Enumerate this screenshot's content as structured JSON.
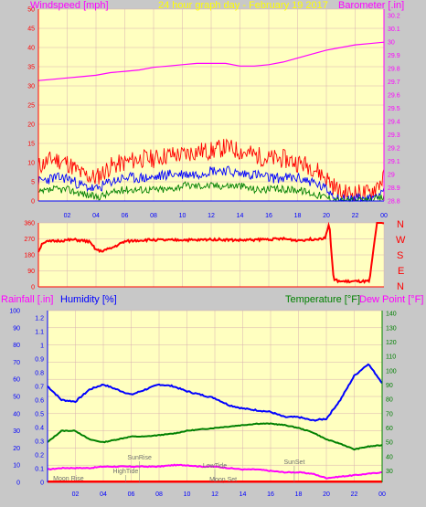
{
  "header": {
    "left_label": "Windspeed [mph]",
    "center_label": "24 hour graph day - February 19 2017",
    "right_label": "Barometer [.in]"
  },
  "mid_panel": {
    "compass": [
      "N",
      "W",
      "S",
      "E",
      "N"
    ]
  },
  "bottom_header": {
    "rain_label": "Rainfall [.in]",
    "humidity_label": "Humidity [%]",
    "temp_label": "Temperature [°F]",
    "dew_label": "Dew Point [°F]"
  },
  "colors": {
    "plot_bg": "#ffffc0",
    "frame_bg": "#c8c8c8",
    "grid": "#d8b0b0",
    "wind_gust": "#ff0000",
    "wind_avg": "#0000ff",
    "wind_low": "#008000",
    "barometer": "#ff00ff",
    "direction": "#ff0000",
    "humidity": "#0000ff",
    "temperature": "#008000",
    "dewpoint": "#ff00ff",
    "rainfall": "#ff0000",
    "header_label_wind": "#ff00ff",
    "header_label_date": "#ffff00"
  },
  "chart_data": [
    {
      "type": "line",
      "id": "wind_baro",
      "x_ticks": [
        "02",
        "04",
        "06",
        "08",
        "10",
        "12",
        "14",
        "16",
        "18",
        "20",
        "22",
        "00"
      ],
      "y_left_ticks": [
        "0",
        "5",
        "10",
        "15",
        "20",
        "25",
        "30",
        "35",
        "40",
        "45",
        "50"
      ],
      "y_right_ticks": [
        "28.8",
        "28.9",
        "29",
        "29.1",
        "29.2",
        "29.3",
        "29.4",
        "29.5",
        "29.6",
        "29.7",
        "29.8",
        "29.9",
        "30",
        "30.1",
        "30.2"
      ],
      "ylim_left": [
        0,
        50
      ],
      "ylim_right": [
        28.8,
        30.25
      ],
      "barometer": {
        "x": [
          0,
          1,
          2,
          3,
          4,
          5,
          6,
          7,
          8,
          9,
          10,
          11,
          12,
          13,
          14,
          15,
          16,
          17,
          18,
          19,
          20,
          21,
          22,
          23,
          24
        ],
        "y": [
          29.71,
          29.72,
          29.73,
          29.74,
          29.75,
          29.77,
          29.78,
          29.79,
          29.81,
          29.82,
          29.83,
          29.84,
          29.84,
          29.84,
          29.82,
          29.82,
          29.83,
          29.85,
          29.88,
          29.91,
          29.94,
          29.96,
          29.98,
          29.99,
          30.0
        ]
      },
      "wind_gust": {
        "x": [
          0,
          1,
          2,
          3,
          4,
          5,
          6,
          7,
          8,
          9,
          10,
          11,
          12,
          13,
          14,
          15,
          16,
          17,
          18,
          19,
          20,
          21,
          22,
          23,
          24
        ],
        "y": [
          9,
          11,
          10,
          7,
          6,
          9,
          10,
          11,
          11,
          12,
          12,
          13,
          13,
          14,
          13,
          12,
          11,
          11,
          10,
          9,
          6,
          2,
          2,
          2,
          6
        ]
      },
      "wind_avg": {
        "x": [
          0,
          1,
          2,
          3,
          4,
          5,
          6,
          7,
          8,
          9,
          10,
          11,
          12,
          13,
          14,
          15,
          16,
          17,
          18,
          19,
          20,
          21,
          22,
          23,
          24
        ],
        "y": [
          5,
          6,
          6,
          4,
          3,
          5,
          6,
          6,
          6,
          7,
          7,
          7,
          8,
          8,
          7,
          7,
          6,
          6,
          6,
          5,
          3,
          0.5,
          0.5,
          0.5,
          3
        ]
      },
      "wind_low": {
        "x": [
          0,
          1,
          2,
          3,
          4,
          5,
          6,
          7,
          8,
          9,
          10,
          11,
          12,
          13,
          14,
          15,
          16,
          17,
          18,
          19,
          20,
          21,
          22,
          23,
          24
        ],
        "y": [
          2,
          3,
          3,
          2,
          1,
          2,
          3,
          3,
          3,
          3,
          4,
          4,
          4,
          4,
          4,
          3,
          3,
          3,
          3,
          2,
          1,
          0,
          0,
          0,
          1
        ]
      }
    },
    {
      "type": "line",
      "id": "wind_direction",
      "y_ticks": [
        "0",
        "90",
        "180",
        "270",
        "360"
      ],
      "ylim": [
        0,
        360
      ],
      "direction": {
        "x": [
          0,
          0.3,
          0.8,
          1.5,
          2.5,
          3.5,
          4.0,
          4.3,
          5.0,
          6.0,
          7.0,
          8.0,
          9.0,
          10.0,
          11.0,
          12.0,
          13.0,
          14.0,
          15.0,
          16.0,
          17.0,
          18.0,
          19.0,
          19.5,
          19.9,
          20.2,
          20.5,
          21.0,
          22.0,
          23.0,
          23.5,
          24.0
        ],
        "y": [
          200,
          250,
          255,
          260,
          265,
          255,
          210,
          200,
          215,
          255,
          262,
          265,
          262,
          265,
          262,
          268,
          265,
          262,
          265,
          268,
          270,
          262,
          268,
          272,
          275,
          360,
          40,
          30,
          30,
          30,
          360,
          360
        ]
      }
    },
    {
      "type": "line",
      "id": "humidity_temp",
      "y_humidity_ticks": [
        "0",
        "10",
        "20",
        "30",
        "40",
        "50",
        "60",
        "70",
        "80",
        "90",
        "100"
      ],
      "y_rain_ticks": [
        "0",
        "0.1",
        "0.2",
        "0.3",
        "0.4",
        "0.5",
        "0.6",
        "0.7",
        "0.8",
        "0.9",
        "1",
        "1.1",
        "1.2"
      ],
      "y_temp_ticks": [
        "30",
        "40",
        "50",
        "60",
        "70",
        "80",
        "90",
        "100",
        "110",
        "120",
        "130",
        "140"
      ],
      "ylim_humidity": [
        0,
        100
      ],
      "ylim_temp": [
        22,
        142
      ],
      "annotations": [
        {
          "label": "Moon Rise",
          "x": 1.5
        },
        {
          "label": "HighTide",
          "x": 5.6
        },
        {
          "label": "SunRise",
          "x": 6.6
        },
        {
          "label": "LowTide",
          "x": 12.0
        },
        {
          "label": "Moon Set",
          "x": 12.6
        },
        {
          "label": "SunSet",
          "x": 17.7
        }
      ],
      "humidity": {
        "x": [
          0,
          1,
          2,
          3,
          4,
          5,
          6,
          7,
          8,
          9,
          10,
          11,
          12,
          13,
          14,
          15,
          16,
          17,
          18,
          19,
          20,
          21,
          22,
          23,
          24
        ],
        "y": [
          56,
          48,
          47,
          54,
          57,
          54,
          51,
          54,
          57,
          56,
          53,
          51,
          49,
          45,
          43,
          42,
          41,
          38,
          38,
          36,
          37,
          48,
          62,
          69,
          58
        ]
      },
      "temperature": {
        "x": [
          0,
          1,
          2,
          3,
          4,
          5,
          6,
          7,
          8,
          9,
          10,
          11,
          12,
          13,
          14,
          15,
          16,
          17,
          18,
          19,
          20,
          21,
          22,
          23,
          24
        ],
        "y": [
          50,
          58,
          58,
          52,
          50,
          52,
          54,
          54,
          55,
          56,
          58,
          59,
          60,
          61,
          62,
          63,
          63,
          62,
          60,
          57,
          52,
          49,
          45,
          47,
          48
        ]
      },
      "dewpoint": {
        "x": [
          0,
          1,
          2,
          3,
          4,
          5,
          6,
          7,
          8,
          9,
          10,
          11,
          12,
          13,
          14,
          15,
          16,
          17,
          18,
          19,
          20,
          21,
          22,
          23,
          24
        ],
        "y": [
          31,
          32,
          32,
          32,
          33,
          33,
          33,
          33,
          33,
          34,
          34,
          33,
          33,
          32,
          31,
          31,
          30,
          29,
          29,
          28,
          25,
          26,
          27,
          28,
          29
        ]
      },
      "rainfall": {
        "x": [
          0,
          24
        ],
        "y": [
          0,
          0
        ]
      }
    }
  ]
}
